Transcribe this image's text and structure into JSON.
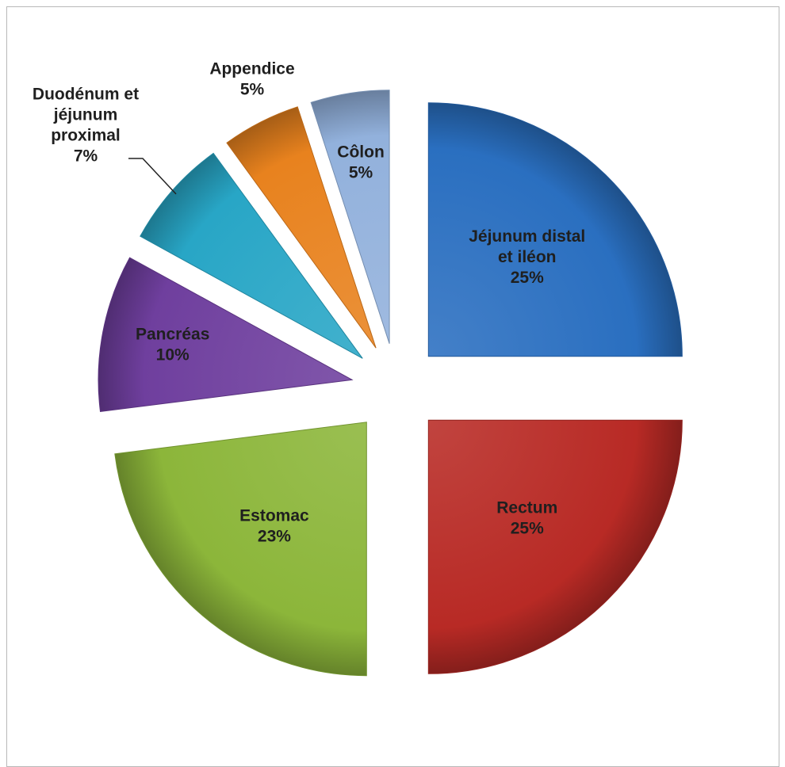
{
  "chart_data": {
    "type": "pie",
    "exploded": true,
    "slices": [
      {
        "label": "Jéjunum distal et iléon",
        "label_lines": [
          "Jéjunum distal",
          "et iléon"
        ],
        "value": 25,
        "value_label": "25%",
        "color": "#2a6fc0",
        "label_position": "inside"
      },
      {
        "label": "Rectum",
        "label_lines": [
          "Rectum"
        ],
        "value": 25,
        "value_label": "25%",
        "color": "#b82a25",
        "label_position": "inside"
      },
      {
        "label": "Estomac",
        "label_lines": [
          "Estomac"
        ],
        "value": 23,
        "value_label": "23%",
        "color": "#8cb63a",
        "label_position": "inside"
      },
      {
        "label": "Pancréas",
        "label_lines": [
          "Pancréas"
        ],
        "value": 10,
        "value_label": "10%",
        "color": "#6f3f9e",
        "label_position": "inside"
      },
      {
        "label": "Duodénum et jéjunum proximal",
        "label_lines": [
          "Duodénum et",
          "jéjunum",
          "proximal"
        ],
        "value": 7,
        "value_label": "7%",
        "color": "#28a6c6",
        "label_position": "outside"
      },
      {
        "label": "Appendice",
        "label_lines": [
          "Appendice"
        ],
        "value": 5,
        "value_label": "5%",
        "color": "#e8821e",
        "label_position": "outside"
      },
      {
        "label": "Côlon",
        "label_lines": [
          "Côlon"
        ],
        "value": 5,
        "value_label": "5%",
        "color": "#92b1dc",
        "label_position": "inside"
      }
    ]
  }
}
